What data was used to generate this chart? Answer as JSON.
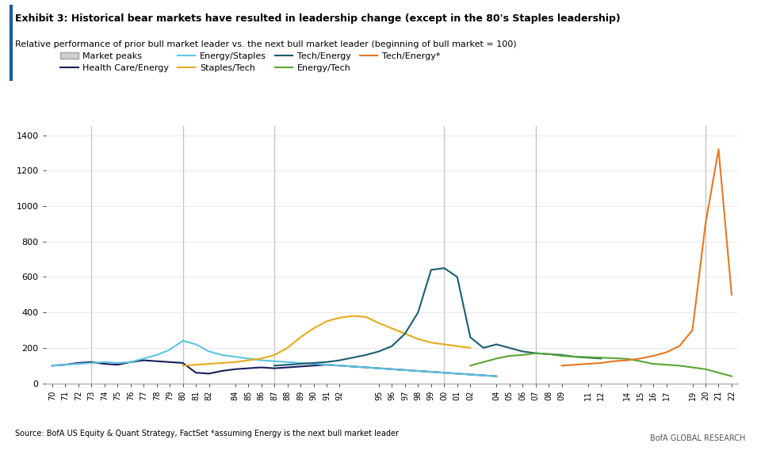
{
  "title": "Exhibit 3: Historical bear markets have resulted in leadership change (except in the 80's Staples leadership)",
  "subtitle": "Relative performance of prior bull market leader vs. the next bull market leader (beginning of bull market = 100)",
  "source": "Source: BofA US Equity & Quant Strategy, FactSet *assuming Energy is the next bull market leader",
  "branding": "BofA GLOBAL RESEARCH",
  "background_color": "#ffffff",
  "plot_bg_color": "#ffffff",
  "market_peak_lines": [
    1973,
    1980,
    1987,
    2000,
    2007,
    2020
  ],
  "ylim": [
    0,
    1450
  ],
  "yticks": [
    0,
    200,
    400,
    600,
    800,
    1000,
    1200,
    1400
  ],
  "series": [
    {
      "name": "Health Care/Energy",
      "color": "#1a1f5e",
      "linewidth": 1.5,
      "x": [
        1970,
        1971,
        1972,
        1973,
        1974,
        1975,
        1976,
        1977,
        1978,
        1979,
        1980,
        1981,
        1982,
        1983,
        1984,
        1985,
        1986,
        1987,
        1988,
        1989,
        1990,
        1991,
        1992,
        1993,
        1994,
        1995,
        1996,
        1997,
        1998,
        1999,
        2000,
        2001,
        2002,
        2003,
        2004
      ],
      "y": [
        100,
        105,
        115,
        120,
        110,
        105,
        120,
        130,
        125,
        120,
        115,
        60,
        55,
        70,
        80,
        85,
        90,
        85,
        90,
        95,
        100,
        105,
        100,
        95,
        90,
        85,
        80,
        75,
        70,
        65,
        60,
        55,
        50,
        45,
        40
      ]
    },
    {
      "name": "Energy/Staples",
      "color": "#5bc4e4",
      "linewidth": 1.5,
      "x": [
        1970,
        1971,
        1972,
        1973,
        1974,
        1975,
        1976,
        1977,
        1978,
        1979,
        1980,
        1981,
        1982,
        1983,
        1984,
        1985,
        1986,
        1987,
        1988,
        1989,
        1990,
        1991,
        1992,
        1993,
        1994,
        1995,
        1996,
        1997,
        1998,
        1999,
        2000,
        2001,
        2002,
        2003,
        2004
      ],
      "y": [
        100,
        105,
        110,
        115,
        120,
        115,
        120,
        140,
        160,
        190,
        240,
        220,
        180,
        160,
        150,
        140,
        130,
        125,
        120,
        115,
        110,
        105,
        100,
        95,
        90,
        85,
        80,
        75,
        70,
        65,
        60,
        55,
        50,
        45,
        40
      ]
    },
    {
      "name": "Staples/Tech",
      "color": "#e5ab1b",
      "linewidth": 1.5,
      "x": [
        1980,
        1981,
        1982,
        1983,
        1984,
        1985,
        1986,
        1987,
        1988,
        1989,
        1990,
        1991,
        1992,
        1993,
        1994,
        1995,
        1996,
        1997,
        1998,
        1999,
        2000,
        2001,
        2002
      ],
      "y": [
        100,
        105,
        110,
        115,
        120,
        130,
        140,
        160,
        200,
        260,
        310,
        350,
        370,
        380,
        375,
        340,
        310,
        280,
        250,
        230,
        220,
        210,
        200
      ]
    },
    {
      "name": "Tech/Energy",
      "color": "#1a5e6e",
      "linewidth": 1.5,
      "x": [
        1987,
        1988,
        1989,
        1990,
        1991,
        1992,
        1993,
        1994,
        1995,
        1996,
        1997,
        1998,
        1999,
        2000,
        2001,
        2002,
        2003,
        2004,
        2005,
        2006,
        2007,
        2008,
        2009,
        2010,
        2011,
        2012
      ],
      "y": [
        100,
        105,
        110,
        115,
        120,
        130,
        145,
        160,
        180,
        210,
        280,
        400,
        640,
        650,
        600,
        260,
        200,
        220,
        200,
        180,
        170,
        165,
        160,
        150,
        145,
        140
      ]
    },
    {
      "name": "Energy/Tech",
      "color": "#5aa632",
      "linewidth": 1.5,
      "x": [
        2002,
        2003,
        2004,
        2005,
        2006,
        2007,
        2008,
        2009,
        2010,
        2011,
        2012,
        2013,
        2014,
        2015,
        2016,
        2017,
        2018,
        2019,
        2020,
        2021,
        2022
      ],
      "y": [
        100,
        120,
        140,
        155,
        160,
        170,
        165,
        155,
        150,
        148,
        145,
        142,
        138,
        125,
        110,
        105,
        100,
        90,
        80,
        60,
        40
      ]
    },
    {
      "name": "Tech/Energy*",
      "color": "#e87722",
      "linewidth": 1.5,
      "x": [
        2009,
        2010,
        2011,
        2012,
        2013,
        2014,
        2015,
        2016,
        2017,
        2018,
        2019,
        2020,
        2021,
        2022
      ],
      "y": [
        100,
        105,
        110,
        115,
        125,
        130,
        140,
        155,
        175,
        210,
        300,
        900,
        1320,
        500
      ]
    }
  ],
  "xtick_labels": [
    "70",
    "71",
    "72",
    "73",
    "74",
    "75",
    "76",
    "77",
    "78",
    "79",
    "80",
    "81",
    "82",
    "84",
    "85",
    "86",
    "87",
    "88",
    "89",
    "90",
    "91",
    "92",
    "95",
    "96",
    "97",
    "98",
    "99",
    "00",
    "01",
    "02",
    "04",
    "05",
    "06",
    "07",
    "08",
    "09",
    "11",
    "12",
    "14",
    "15",
    "16",
    "17",
    "19",
    "20",
    "21",
    "22"
  ],
  "xtick_positions": [
    1970,
    1971,
    1972,
    1973,
    1974,
    1975,
    1976,
    1977,
    1978,
    1979,
    1980,
    1981,
    1982,
    1984,
    1985,
    1986,
    1987,
    1988,
    1989,
    1990,
    1991,
    1992,
    1995,
    1996,
    1997,
    1998,
    1999,
    2000,
    2001,
    2002,
    2004,
    2005,
    2006,
    2007,
    2008,
    2009,
    2011,
    2012,
    2014,
    2015,
    2016,
    2017,
    2019,
    2020,
    2021,
    2022
  ]
}
